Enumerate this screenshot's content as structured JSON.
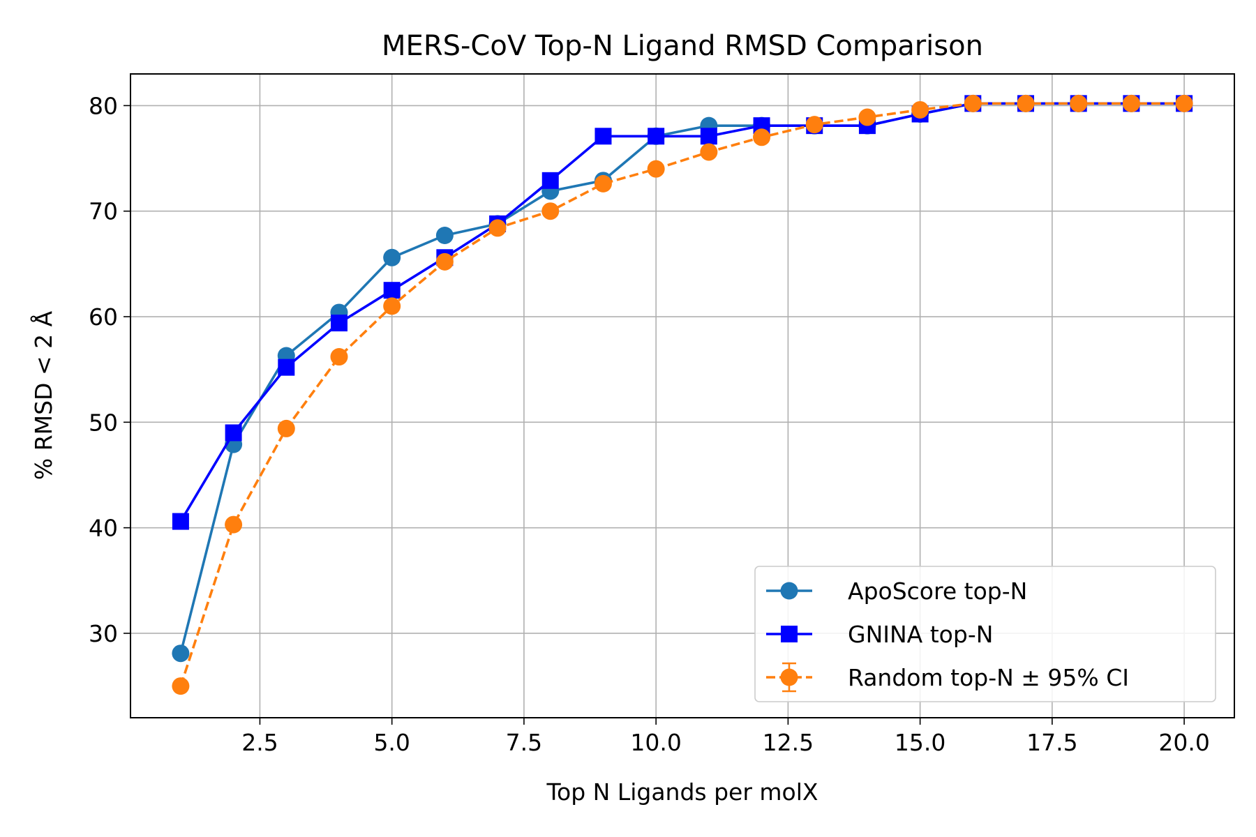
{
  "chart_data": {
    "type": "line",
    "title": "MERS-CoV Top-N Ligand RMSD Comparison",
    "xlabel": "Top N Ligands per molX",
    "ylabel": "% RMSD < 2 Å",
    "xlim": [
      0.05,
      20.95
    ],
    "ylim": [
      22.0,
      83.0
    ],
    "x_ticks": [
      2.5,
      5.0,
      7.5,
      10.0,
      12.5,
      15.0,
      17.5,
      20.0
    ],
    "x_tick_labels": [
      "2.5",
      "5.0",
      "7.5",
      "10.0",
      "12.5",
      "15.0",
      "17.5",
      "20.0"
    ],
    "y_ticks": [
      30,
      40,
      50,
      60,
      70,
      80
    ],
    "y_tick_labels": [
      "30",
      "40",
      "50",
      "60",
      "70",
      "80"
    ],
    "grid": true,
    "legend_position": "lower-right",
    "x": [
      1,
      2,
      3,
      4,
      5,
      6,
      7,
      8,
      9,
      10,
      11,
      12,
      13,
      14,
      15,
      16,
      17,
      18,
      19,
      20
    ],
    "series": [
      {
        "name": "ApoScore top-N",
        "color": "#1f77b4",
        "marker": "circle",
        "line_style": "solid",
        "values": [
          28.1,
          47.9,
          56.3,
          60.4,
          65.6,
          67.7,
          68.8,
          71.9,
          72.9,
          77.1,
          78.1,
          78.1,
          78.1,
          78.1,
          79.2,
          80.2,
          80.2,
          80.2,
          80.2,
          80.2
        ]
      },
      {
        "name": "GNINA top-N",
        "color": "#0000ff",
        "marker": "square",
        "line_style": "solid",
        "values": [
          40.6,
          49.0,
          55.2,
          59.4,
          62.5,
          65.6,
          68.8,
          72.9,
          77.1,
          77.1,
          77.1,
          78.1,
          78.1,
          78.1,
          79.2,
          80.2,
          80.2,
          80.2,
          80.2,
          80.2
        ]
      },
      {
        "name": "Random top-N ± 95% CI",
        "color": "#ff7f0e",
        "marker": "circle",
        "line_style": "dashed",
        "error_bars": true,
        "values": [
          25.0,
          40.3,
          49.4,
          56.2,
          61.0,
          65.2,
          68.4,
          70.0,
          72.6,
          74.0,
          75.6,
          77.0,
          78.2,
          78.9,
          79.6,
          80.2,
          80.2,
          80.2,
          80.2,
          80.2
        ],
        "ci": [
          0.2,
          0.3,
          0.3,
          0.3,
          0.3,
          0.3,
          0.3,
          0.2,
          0.2,
          0.2,
          0.2,
          0.2,
          0.2,
          0.2,
          0.1,
          0.0,
          0.0,
          0.0,
          0.0,
          0.0
        ]
      }
    ]
  }
}
